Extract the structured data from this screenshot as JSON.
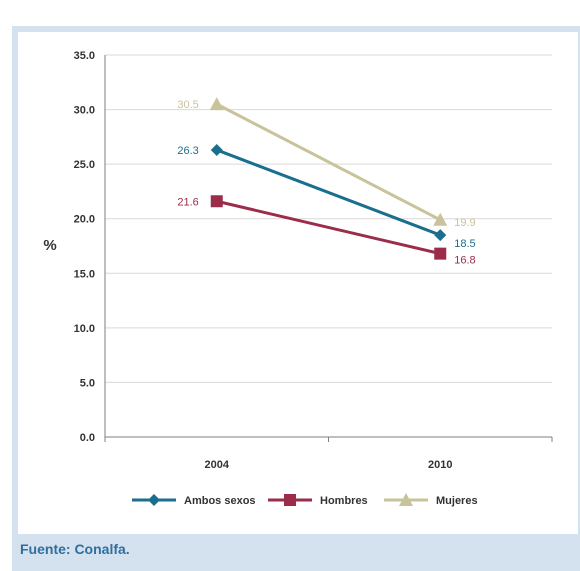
{
  "source_note": "Fuente: Conalfa.",
  "colors": {
    "Ambos sexos": "#1a6e8e",
    "Hombres": "#9b2d4a",
    "Mujeres": "#c8c39a"
  },
  "chart_data": {
    "type": "line",
    "title": "",
    "xlabel": "",
    "ylabel": "%",
    "x": [
      "2004",
      "2010"
    ],
    "ylim": [
      0,
      35
    ],
    "yticks": [
      "0.0",
      "5.0",
      "10.0",
      "15.0",
      "20.0",
      "25.0",
      "30.0",
      "35.0"
    ],
    "grid": true,
    "legend": "bottom",
    "series": [
      {
        "name": "Ambos sexos",
        "values": [
          26.3,
          18.5
        ],
        "labels": [
          "26.3",
          "18.5"
        ],
        "marker": "diamond"
      },
      {
        "name": "Hombres",
        "values": [
          21.6,
          16.8
        ],
        "labels": [
          "21.6",
          "16.8"
        ],
        "marker": "square"
      },
      {
        "name": "Mujeres",
        "values": [
          30.5,
          19.9
        ],
        "labels": [
          "30.5",
          "19.9"
        ],
        "marker": "triangle"
      }
    ]
  }
}
